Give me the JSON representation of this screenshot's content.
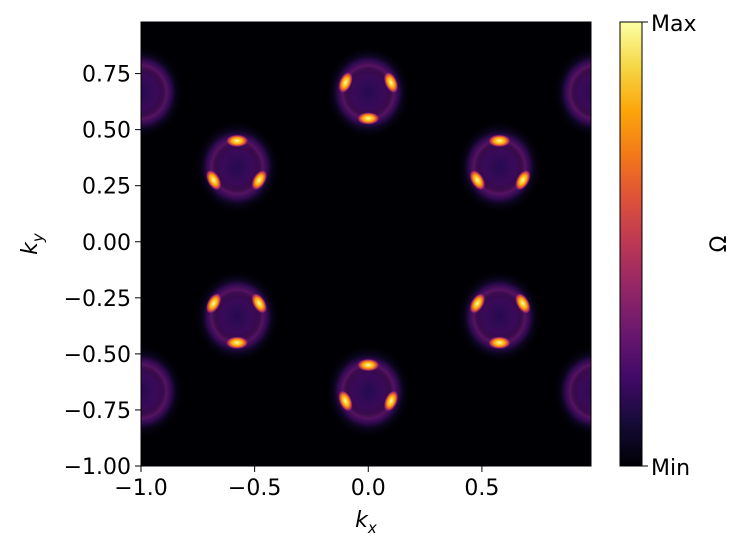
{
  "chart_data": {
    "type": "heatmap",
    "title": "",
    "xlabel": "k",
    "xlabel_sub": "x",
    "ylabel": "k",
    "ylabel_sub": "y",
    "xlim": [
      -1.0,
      0.98
    ],
    "ylim": [
      -1.0,
      0.98
    ],
    "x_ticks": [
      -1.0,
      -0.5,
      0.0,
      0.5
    ],
    "x_tick_labels": [
      "−1.0",
      "−0.5",
      "0.0",
      "0.5"
    ],
    "y_ticks": [
      -1.0,
      -0.75,
      -0.5,
      -0.25,
      0.0,
      0.25,
      0.5,
      0.75
    ],
    "y_tick_labels": [
      "−1.00",
      "−0.75",
      "−0.50",
      "−0.25",
      "0.00",
      "0.25",
      "0.50",
      "0.75"
    ],
    "colormap": "inferno",
    "colorbar": {
      "label": "Ω",
      "max_label": "Max",
      "min_label": "Min"
    },
    "grid": false,
    "hotspot_clusters": [
      {
        "center": [
          0.0,
          0.667
        ],
        "lobes": [
          [
            -0.1,
            0.71
          ],
          [
            0.1,
            0.71
          ],
          [
            0.0,
            0.55
          ]
        ]
      },
      {
        "center": [
          0.0,
          -0.667
        ],
        "lobes": [
          [
            -0.1,
            -0.71
          ],
          [
            0.1,
            -0.71
          ],
          [
            0.0,
            -0.55
          ]
        ]
      },
      {
        "center": [
          -0.577,
          0.333
        ],
        "lobes": [
          [
            -0.577,
            0.45
          ],
          [
            -0.68,
            0.275
          ],
          [
            -0.48,
            0.275
          ]
        ]
      },
      {
        "center": [
          0.577,
          0.333
        ],
        "lobes": [
          [
            0.577,
            0.45
          ],
          [
            0.48,
            0.275
          ],
          [
            0.68,
            0.275
          ]
        ]
      },
      {
        "center": [
          -0.577,
          -0.333
        ],
        "lobes": [
          [
            -0.577,
            -0.45
          ],
          [
            -0.68,
            -0.275
          ],
          [
            -0.48,
            -0.275
          ]
        ]
      },
      {
        "center": [
          0.577,
          -0.333
        ],
        "lobes": [
          [
            0.577,
            -0.45
          ],
          [
            0.48,
            -0.275
          ],
          [
            0.68,
            -0.275
          ]
        ]
      },
      {
        "center": [
          -1.0,
          0.667
        ],
        "lobes": []
      },
      {
        "center": [
          1.0,
          0.667
        ],
        "lobes": []
      },
      {
        "center": [
          -1.0,
          -0.667
        ],
        "lobes": []
      },
      {
        "center": [
          1.0,
          -0.667
        ],
        "lobes": []
      }
    ]
  }
}
